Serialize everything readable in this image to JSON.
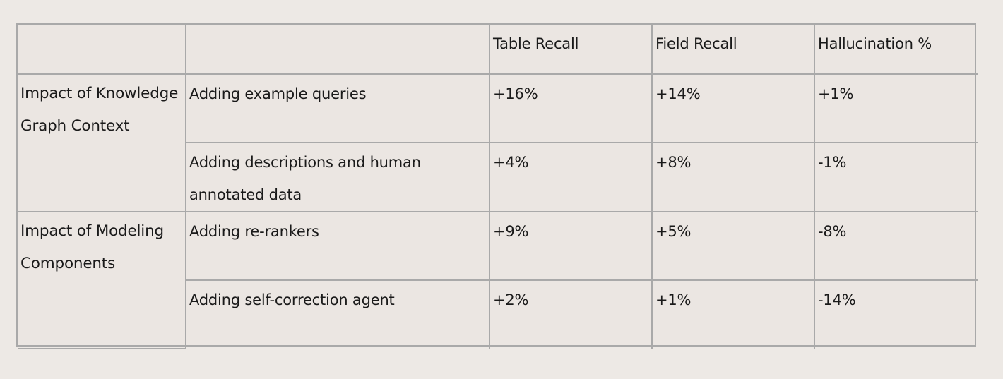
{
  "table": {
    "headers": [
      "",
      "",
      "Table Recall",
      "Field Recall",
      "Hallucination %"
    ],
    "groups": [
      {
        "label": "Impact of Knowledge Graph Context",
        "rows": [
          {
            "desc": "Adding example queries",
            "table_recall": "+16%",
            "field_recall": "+14%",
            "hallucination": "+1%"
          },
          {
            "desc": "Adding descriptions and human annotated data",
            "table_recall": "+4%",
            "field_recall": "+8%",
            "hallucination": "-1%"
          }
        ]
      },
      {
        "label": "Impact of Modeling Components",
        "rows": [
          {
            "desc": "Adding re-rankers",
            "table_recall": "+9%",
            "field_recall": "+5%",
            "hallucination": "-8%"
          },
          {
            "desc": "Adding self-correction agent",
            "table_recall": "+2%",
            "field_recall": "+1%",
            "hallucination": "-14%"
          }
        ]
      }
    ]
  }
}
